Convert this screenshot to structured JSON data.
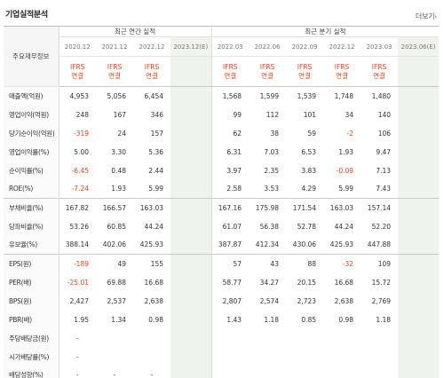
{
  "page": {
    "title": "기업실적분석",
    "more_label": "더보기",
    "more_arrow": "›"
  },
  "table": {
    "label_header": "주요재무정보",
    "annual_group": "최근 연간 실적",
    "quarterly_group": "최근 분기 실적",
    "periods": [
      "2020.12",
      "2021.12",
      "2022.12",
      "2023.12(E)",
      "2022.03",
      "2022.06",
      "2022.09",
      "2022.12",
      "2023.03",
      "2023.06(E)"
    ],
    "ifrs_line1": "IFRS",
    "ifrs_line2": "연결",
    "rows": [
      {
        "label": "매출액(억원)",
        "values": [
          "4,953",
          "5,056",
          "6,454",
          "",
          "1,568",
          "1,599",
          "1,539",
          "1,748",
          "1,480",
          ""
        ],
        "neg": [
          false,
          false,
          false,
          false,
          false,
          false,
          false,
          false,
          false,
          false
        ]
      },
      {
        "label": "영업이익(억원)",
        "values": [
          "248",
          "167",
          "346",
          "",
          "99",
          "112",
          "101",
          "34",
          "140",
          ""
        ],
        "neg": [
          false,
          false,
          false,
          false,
          false,
          false,
          false,
          false,
          false,
          false
        ]
      },
      {
        "label": "당기순이익(억원)",
        "values": [
          "-319",
          "24",
          "157",
          "",
          "62",
          "38",
          "59",
          "-2",
          "106",
          ""
        ],
        "neg": [
          true,
          false,
          false,
          false,
          false,
          false,
          false,
          true,
          false,
          false
        ]
      },
      {
        "label": "영업이익률(%)",
        "values": [
          "5.00",
          "3.30",
          "5.36",
          "",
          "6.31",
          "7.03",
          "6.53",
          "1.93",
          "9.47",
          ""
        ],
        "neg": [
          false,
          false,
          false,
          false,
          false,
          false,
          false,
          false,
          false,
          false
        ]
      },
      {
        "label": "순이익률(%)",
        "values": [
          "-6.45",
          "0.48",
          "2.44",
          "",
          "3.97",
          "2.35",
          "3.83",
          "-0.09",
          "7.13",
          ""
        ],
        "neg": [
          true,
          false,
          false,
          false,
          false,
          false,
          false,
          true,
          false,
          false
        ]
      },
      {
        "label": "ROE(%)",
        "values": [
          "-7.24",
          "1.93",
          "5.99",
          "",
          "2.58",
          "3.53",
          "4.29",
          "5.99",
          "7.43",
          ""
        ],
        "neg": [
          true,
          false,
          false,
          false,
          false,
          false,
          false,
          false,
          false,
          false
        ]
      },
      {
        "label": "부채비율(%)",
        "values": [
          "167.82",
          "166.57",
          "163.03",
          "",
          "167.16",
          "175.98",
          "171.54",
          "163.03",
          "157.14",
          ""
        ],
        "neg": [
          false,
          false,
          false,
          false,
          false,
          false,
          false,
          false,
          false,
          false
        ]
      },
      {
        "label": "당좌비율(%)",
        "values": [
          "53.26",
          "60.85",
          "44.24",
          "",
          "61.07",
          "56.38",
          "52.78",
          "44.24",
          "52.20",
          ""
        ],
        "neg": [
          false,
          false,
          false,
          false,
          false,
          false,
          false,
          false,
          false,
          false
        ]
      },
      {
        "label": "유보율(%)",
        "values": [
          "388.14",
          "402.06",
          "425.93",
          "",
          "387.87",
          "412.34",
          "430.06",
          "425.93",
          "447.88",
          ""
        ],
        "neg": [
          false,
          false,
          false,
          false,
          false,
          false,
          false,
          false,
          false,
          false
        ]
      },
      {
        "label": "EPS(원)",
        "values": [
          "-189",
          "49",
          "155",
          "",
          "57",
          "43",
          "88",
          "-32",
          "109",
          ""
        ],
        "neg": [
          true,
          false,
          false,
          false,
          false,
          false,
          false,
          true,
          false,
          false
        ]
      },
      {
        "label": "PER(배)",
        "values": [
          "-25.01",
          "69.88",
          "16.68",
          "",
          "58.77",
          "34.27",
          "20.15",
          "16.68",
          "15.72",
          ""
        ],
        "neg": [
          true,
          false,
          false,
          false,
          false,
          false,
          false,
          false,
          false,
          false
        ]
      },
      {
        "label": "BPS(원)",
        "values": [
          "2,427",
          "2,537",
          "2,638",
          "",
          "2,807",
          "2,574",
          "2,723",
          "2,638",
          "2,769",
          ""
        ],
        "neg": [
          false,
          false,
          false,
          false,
          false,
          false,
          false,
          false,
          false,
          false
        ]
      },
      {
        "label": "PBR(배)",
        "values": [
          "1.95",
          "1.34",
          "0.98",
          "",
          "1.43",
          "1.18",
          "0.85",
          "0.98",
          "1.18",
          ""
        ],
        "neg": [
          false,
          false,
          false,
          false,
          false,
          false,
          false,
          false,
          false,
          false
        ]
      },
      {
        "label": "주당배당금(원)",
        "values": [
          "-",
          "",
          "",
          "",
          "",
          "",
          "",
          "",
          "",
          ""
        ],
        "neg": [
          false,
          false,
          false,
          false,
          false,
          false,
          false,
          false,
          false,
          false
        ]
      },
      {
        "label": "시가배당률(%)",
        "values": [
          "-",
          "",
          "",
          "",
          "",
          "",
          "",
          "",
          "",
          ""
        ],
        "neg": [
          false,
          false,
          false,
          false,
          false,
          false,
          false,
          false,
          false,
          false
        ]
      },
      {
        "label": "배당성향(%)",
        "values": [
          "-",
          "-",
          "-",
          "",
          "",
          "",
          "",
          "",
          "",
          ""
        ],
        "neg": [
          false,
          false,
          false,
          false,
          false,
          false,
          false,
          false,
          false,
          false
        ]
      }
    ]
  },
  "colors": {
    "negative": "#e8431c",
    "ifrs": "#e8431c",
    "estimate_bg": "#eef4ec"
  }
}
